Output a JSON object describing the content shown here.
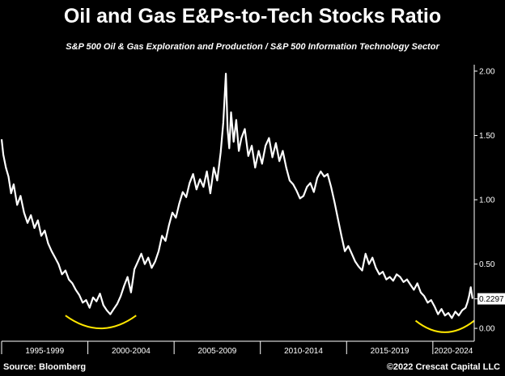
{
  "chart_data": {
    "type": "line",
    "title": "Oil and Gas E&Ps-to-Tech Stocks Ratio",
    "subtitle": "S&P 500 Oil & Gas Exploration and Production / S&P 500 Information Technology Sector",
    "source": "Source: Bloomberg",
    "copyright": "©2022 Crescat Capital LLC",
    "xlim": [
      1995.0,
      2022.4
    ],
    "ylim": [
      -0.1,
      2.05
    ],
    "y_axis_position": "right",
    "grid": false,
    "x_tick_labels": [
      "1995-1999",
      "2000-2004",
      "2005-2009",
      "2010-2014",
      "2015-2019",
      "2020-2024"
    ],
    "x_bands": [
      [
        1995,
        2000
      ],
      [
        2000,
        2005
      ],
      [
        2005,
        2010
      ],
      [
        2010,
        2015
      ],
      [
        2015,
        2020
      ],
      [
        2020,
        2025
      ]
    ],
    "y_ticks": [
      0.0,
      0.5,
      1.0,
      1.5,
      2.0
    ],
    "y_tick_labels": [
      "0.00",
      "0.50",
      "1.00",
      "1.50",
      "2.00"
    ],
    "last_value": 0.2297,
    "last_value_label": "0.2297",
    "series": [
      {
        "color": "#ffffff",
        "x": [
          1995.0,
          1995.1,
          1995.25,
          1995.4,
          1995.55,
          1995.7,
          1995.9,
          1996.1,
          1996.3,
          1996.5,
          1996.7,
          1996.9,
          1997.1,
          1997.3,
          1997.5,
          1997.7,
          1997.9,
          1998.1,
          1998.3,
          1998.5,
          1998.7,
          1998.9,
          1999.1,
          1999.3,
          1999.5,
          1999.7,
          1999.9,
          2000.1,
          2000.3,
          2000.5,
          2000.7,
          2000.9,
          2001.1,
          2001.3,
          2001.5,
          2001.7,
          2001.9,
          2002.1,
          2002.3,
          2002.5,
          2002.7,
          2002.9,
          2003.1,
          2003.3,
          2003.5,
          2003.7,
          2003.9,
          2004.1,
          2004.3,
          2004.5,
          2004.7,
          2004.9,
          2005.1,
          2005.3,
          2005.5,
          2005.7,
          2005.9,
          2006.1,
          2006.3,
          2006.5,
          2006.7,
          2006.9,
          2007.1,
          2007.3,
          2007.5,
          2007.7,
          2007.85,
          2008.0,
          2008.1,
          2008.2,
          2008.3,
          2008.45,
          2008.6,
          2008.75,
          2008.9,
          2009.1,
          2009.3,
          2009.5,
          2009.7,
          2009.9,
          2010.1,
          2010.3,
          2010.5,
          2010.7,
          2010.9,
          2011.1,
          2011.3,
          2011.5,
          2011.7,
          2011.9,
          2012.1,
          2012.3,
          2012.5,
          2012.7,
          2012.9,
          2013.1,
          2013.3,
          2013.5,
          2013.7,
          2013.9,
          2014.1,
          2014.3,
          2014.5,
          2014.7,
          2014.9,
          2015.1,
          2015.3,
          2015.5,
          2015.7,
          2015.9,
          2016.1,
          2016.3,
          2016.5,
          2016.7,
          2016.9,
          2017.1,
          2017.3,
          2017.5,
          2017.7,
          2017.9,
          2018.1,
          2018.3,
          2018.5,
          2018.7,
          2018.9,
          2019.1,
          2019.3,
          2019.5,
          2019.7,
          2019.9,
          2020.1,
          2020.3,
          2020.5,
          2020.7,
          2020.9,
          2021.1,
          2021.3,
          2021.5,
          2021.7,
          2021.9,
          2022.0,
          2022.1,
          2022.2,
          2022.3
        ],
        "y": [
          1.47,
          1.35,
          1.25,
          1.18,
          1.05,
          1.12,
          0.96,
          1.03,
          0.9,
          0.82,
          0.88,
          0.78,
          0.84,
          0.72,
          0.76,
          0.66,
          0.6,
          0.55,
          0.5,
          0.42,
          0.45,
          0.38,
          0.35,
          0.3,
          0.26,
          0.2,
          0.22,
          0.16,
          0.24,
          0.21,
          0.27,
          0.18,
          0.14,
          0.11,
          0.15,
          0.19,
          0.25,
          0.33,
          0.4,
          0.28,
          0.46,
          0.52,
          0.58,
          0.5,
          0.55,
          0.47,
          0.52,
          0.6,
          0.72,
          0.68,
          0.8,
          0.9,
          0.86,
          0.97,
          1.06,
          1.02,
          1.13,
          1.2,
          1.08,
          1.16,
          1.1,
          1.22,
          1.05,
          1.25,
          1.15,
          1.37,
          1.6,
          1.98,
          1.55,
          1.4,
          1.68,
          1.45,
          1.62,
          1.38,
          1.48,
          1.55,
          1.34,
          1.42,
          1.25,
          1.38,
          1.28,
          1.42,
          1.48,
          1.33,
          1.44,
          1.3,
          1.38,
          1.25,
          1.15,
          1.12,
          1.07,
          1.01,
          1.03,
          1.1,
          1.13,
          1.06,
          1.17,
          1.22,
          1.18,
          1.2,
          1.1,
          0.98,
          0.85,
          0.72,
          0.6,
          0.64,
          0.58,
          0.52,
          0.48,
          0.45,
          0.58,
          0.5,
          0.55,
          0.47,
          0.42,
          0.44,
          0.38,
          0.4,
          0.37,
          0.42,
          0.4,
          0.36,
          0.38,
          0.34,
          0.3,
          0.35,
          0.28,
          0.25,
          0.2,
          0.22,
          0.17,
          0.11,
          0.15,
          0.1,
          0.12,
          0.08,
          0.13,
          0.1,
          0.14,
          0.16,
          0.2,
          0.25,
          0.32,
          0.23
        ]
      }
    ],
    "annotations": [
      {
        "type": "bottom-arc",
        "color": "#ffe600",
        "x_range": [
          1998.7,
          2002.8
        ],
        "y_ends": 0.1,
        "y_bottom": 0.0
      },
      {
        "type": "bottom-arc",
        "color": "#ffe600",
        "x_range": [
          2019.0,
          2022.4
        ],
        "y_ends": 0.06,
        "y_bottom": -0.03
      }
    ]
  }
}
